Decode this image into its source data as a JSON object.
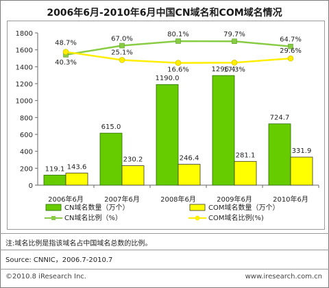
{
  "title": "2006年6月-2010年6月中国CN域名和COM域名情况",
  "note": "注:域名比例是指该域名占中国域名总数的比例。",
  "source": "Source: CNNIC，2006.7-2010.7",
  "copyright": "©2010.8 iResearch Inc.",
  "website": "www.iresearch.com.cn",
  "colors": {
    "cn": "#66cc00",
    "com": "#ffff00",
    "cn_line": "#88cc44",
    "com_line": "#ffee00"
  },
  "chart_data": {
    "type": "bar",
    "categories": [
      "2006年6月",
      "2007年6月",
      "2008年6月",
      "2009年6月",
      "2010年6月"
    ],
    "ylim": [
      0,
      1800
    ],
    "yticks": [
      "0",
      "200",
      "400",
      "600",
      "800",
      "1000",
      "1200",
      "1400",
      "1600",
      "1800"
    ],
    "series": [
      {
        "name": "CN域名数量（万个）",
        "values": [
          119.1,
          615.0,
          1190.0,
          1296.4,
          724.7
        ],
        "labels": [
          "119.1",
          "615.0",
          "1190.0",
          "1296.4",
          "724.7"
        ]
      },
      {
        "name": "COM域名数量（万个）",
        "values": [
          143.6,
          230.2,
          246.4,
          281.1,
          331.9
        ],
        "labels": [
          "143.6",
          "230.2",
          "246.4",
          "281.1",
          "331.9"
        ]
      }
    ],
    "ratio_series": [
      {
        "name": "CN域名比例（%）",
        "values": [
          40.3,
          67.0,
          80.1,
          79.7,
          64.7
        ],
        "labels": [
          "40.3%",
          "67.0%",
          "80.1%",
          "79.7%",
          "64.7%"
        ]
      },
      {
        "name": "COM域名比例(%)",
        "values": [
          48.7,
          25.1,
          16.6,
          17.3,
          29.6
        ],
        "labels": [
          "48.7%",
          "25.1%",
          "16.6%",
          "17.3%",
          "29.6%"
        ]
      }
    ]
  }
}
